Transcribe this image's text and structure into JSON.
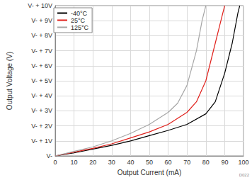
{
  "chart_data": {
    "type": "line",
    "x_label": "Output Current (mA)",
    "y_label": "Output Voltage (V)",
    "annotations": [
      {
        "text": "D022"
      }
    ],
    "xlim": [
      0,
      100
    ],
    "xticks": [
      0,
      10,
      20,
      30,
      40,
      50,
      60,
      70,
      80,
      90,
      100
    ],
    "ylim": [
      0,
      10
    ],
    "yticks": [
      {
        "value": 0,
        "label": "V-"
      },
      {
        "value": 1,
        "label": "V- + 1V"
      },
      {
        "value": 2,
        "label": "V- + 2V"
      },
      {
        "value": 3,
        "label": "V- + 3V"
      },
      {
        "value": 4,
        "label": "V- + 4V"
      },
      {
        "value": 5,
        "label": "V- + 5V"
      },
      {
        "value": 6,
        "label": "V- + 6V"
      },
      {
        "value": 7,
        "label": "V- + 7V"
      },
      {
        "value": 8,
        "label": "V- + 8V"
      },
      {
        "value": 9,
        "label": "V- + 9V"
      },
      {
        "value": 10,
        "label": "V- + 10V"
      }
    ],
    "grid": true,
    "legend": "top-left",
    "series": [
      {
        "name": "-40°C",
        "color": "#000000",
        "x": [
          0,
          10,
          20,
          30,
          40,
          50,
          60,
          70,
          80,
          85,
          90,
          94,
          97,
          98
        ],
        "values": [
          0,
          0.2,
          0.45,
          0.7,
          1.0,
          1.35,
          1.7,
          2.1,
          2.8,
          3.6,
          5.5,
          7.5,
          9.5,
          10
        ]
      },
      {
        "name": "25°C",
        "color": "#e0201b",
        "x": [
          0,
          10,
          20,
          30,
          40,
          50,
          60,
          70,
          75,
          80,
          85,
          88,
          90
        ],
        "values": [
          0,
          0.25,
          0.5,
          0.8,
          1.2,
          1.6,
          2.1,
          2.9,
          3.6,
          5.0,
          7.5,
          9.0,
          10
        ]
      },
      {
        "name": "125°C",
        "color": "#a6a6a6",
        "x": [
          0,
          10,
          20,
          30,
          40,
          50,
          60,
          65,
          70,
          75,
          78,
          80
        ],
        "values": [
          0,
          0.3,
          0.6,
          1.0,
          1.5,
          2.1,
          2.9,
          3.5,
          4.7,
          7.0,
          9.0,
          10
        ]
      }
    ]
  }
}
